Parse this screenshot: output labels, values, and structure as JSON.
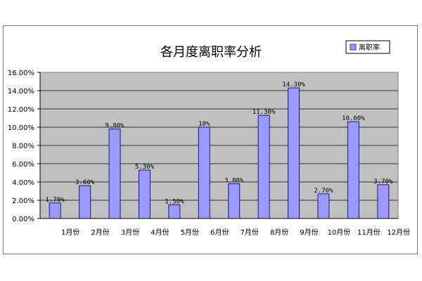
{
  "chart_data": {
    "type": "bar",
    "title": "各月度离职率分析",
    "legend": {
      "label": "离职率",
      "position": "top-right"
    },
    "categories": [
      "1月份",
      "2月份",
      "3月份",
      "4月份",
      "5月份",
      "6月份",
      "7月份",
      "8月份",
      "9月份",
      "10月份",
      "11月份",
      "12月份"
    ],
    "values": [
      1.7,
      3.6,
      9.8,
      5.3,
      1.5,
      10.0,
      3.8,
      11.3,
      14.3,
      2.7,
      10.6,
      3.7
    ],
    "data_labels": [
      "1.70%",
      "3.60%",
      "9.80%",
      "5.30%",
      "1.50%",
      "10%",
      "3.80%",
      "11.30%",
      "14.30%",
      "2.70%",
      "10.60%",
      "3.70%"
    ],
    "yticks": [
      "0.00%",
      "2.00%",
      "4.00%",
      "6.00%",
      "8.00%",
      "10.00%",
      "12.00%",
      "14.00%",
      "16.00%"
    ],
    "ylim": [
      0,
      16
    ],
    "grid": true,
    "colors": {
      "bar": "#9999ff",
      "bar_border": "#1a1a80",
      "plot_bg": "#c0c0c0"
    }
  }
}
